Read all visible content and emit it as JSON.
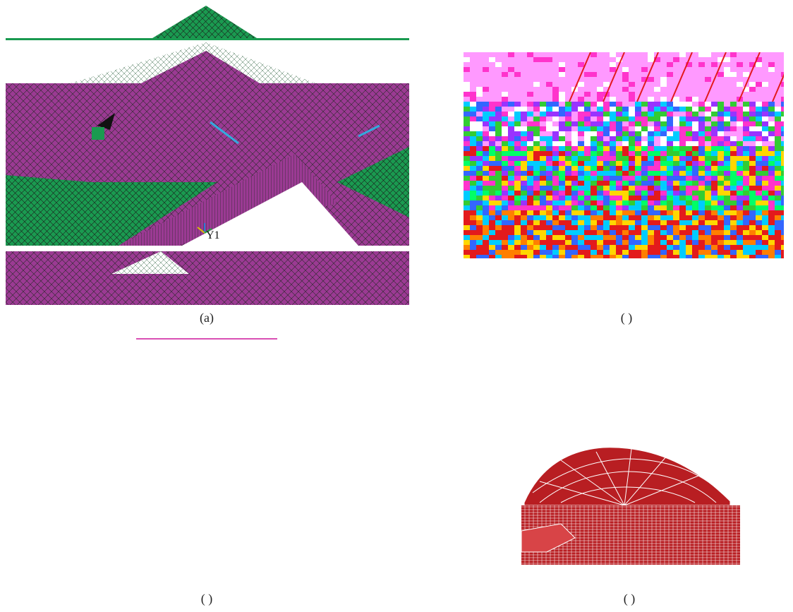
{
  "captions": {
    "a": "(a)",
    "b": "( )",
    "c": "( )",
    "d": "( )"
  },
  "panel_a": {
    "axis_label": "Y1",
    "colors": {
      "mesh_purple": "#9b3a93",
      "mesh_green": "#1a9a50",
      "line": "#333333"
    }
  },
  "panel_b": {
    "palette": [
      "#e31a1c",
      "#ff7f00",
      "#ffd700",
      "#33cc33",
      "#00ff66",
      "#00ccff",
      "#3366ff",
      "#9933ff",
      "#ff33cc",
      "#ff99ff",
      "#ffffff"
    ]
  },
  "panel_d": {
    "colors": {
      "fill": "#b81e22",
      "edge": "#ffffff"
    }
  },
  "decorations": {
    "underline_color": "#d94fb4"
  }
}
